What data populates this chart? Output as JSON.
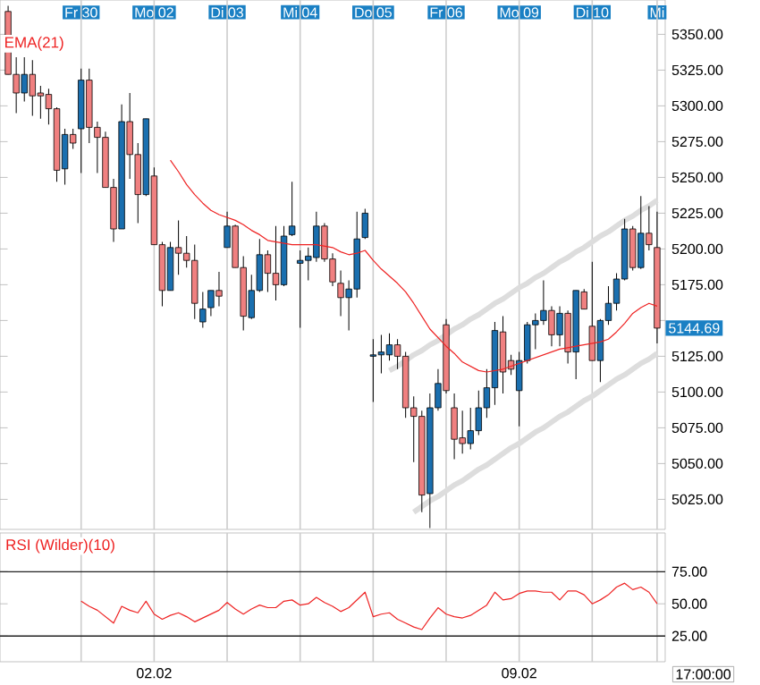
{
  "chart_data": [
    {
      "type": "candlestick",
      "ylim": [
        5004,
        5374
      ],
      "categories": [
        null,
        null,
        null,
        null,
        null,
        null,
        null,
        null,
        null,
        "Fr 30",
        null,
        null,
        null,
        null,
        null,
        null,
        null,
        null,
        "Mo 02",
        null,
        null,
        null,
        null,
        null,
        null,
        null,
        null,
        "Di 03",
        null,
        null,
        null,
        null,
        null,
        null,
        null,
        null,
        "Mi 04",
        null,
        null,
        null,
        null,
        null,
        null,
        null,
        null,
        "Do 05",
        null,
        null,
        null,
        null,
        null,
        null,
        null,
        null,
        "Fr 06",
        null,
        null,
        null,
        null,
        null,
        null,
        null,
        null,
        "Mo 09",
        null,
        null,
        null,
        null,
        null,
        null,
        null,
        null,
        "Di 10",
        null,
        null,
        null,
        null,
        null,
        null,
        null,
        "Mi"
      ],
      "yticks": [
        {
          "value": 5025,
          "label": "5025.00"
        },
        {
          "value": 5050,
          "label": "5050.00"
        },
        {
          "value": 5075,
          "label": "5075.00"
        },
        {
          "value": 5100,
          "label": "5100.00"
        },
        {
          "value": 5125,
          "label": "5125.00"
        },
        {
          "value": 5150,
          "label": null
        },
        {
          "value": 5175,
          "label": "5175.00"
        },
        {
          "value": 5200,
          "label": "5200.00"
        },
        {
          "value": 5225,
          "label": "5225.00"
        },
        {
          "value": 5250,
          "label": "5250.00"
        },
        {
          "value": 5275,
          "label": "5275.00"
        },
        {
          "value": 5300,
          "label": "5300.00"
        },
        {
          "value": 5325,
          "label": "5325.00"
        },
        {
          "value": 5350,
          "label": "5350.00"
        }
      ],
      "grid": "x",
      "annotations": [
        "5144.69"
      ],
      "series": [
        {
          "type": "candlestick",
          "ohlc": [
            [
              5366,
              5370,
              5322,
              5322
            ],
            [
              5322,
              5334,
              5295,
              5309
            ],
            [
              5309,
              5334,
              5303,
              5322
            ],
            [
              5322,
              5332,
              5293,
              5307
            ],
            [
              5309,
              5314,
              5291,
              5307
            ],
            [
              5308,
              5312,
              5287,
              5298
            ],
            [
              5298,
              5299,
              5247,
              5255
            ],
            [
              5256,
              5284,
              5245,
              5280
            ],
            [
              5280,
              5284,
              5270,
              5274
            ],
            [
              5284,
              5326,
              5253,
              5318
            ],
            [
              5318,
              5326,
              5274,
              5285
            ],
            [
              5285,
              5289,
              5253,
              5278
            ],
            [
              5278,
              5282,
              5243,
              5243
            ],
            [
              5243,
              5249,
              5205,
              5214
            ],
            [
              5214,
              5301,
              5214,
              5289
            ],
            [
              5289,
              5309,
              5249,
              5266
            ],
            [
              5266,
              5274,
              5218,
              5238
            ],
            [
              5238,
              5291,
              5237,
              5291
            ],
            [
              5251,
              5257,
              5203,
              5203
            ],
            [
              5203,
              5205,
              5160,
              5171
            ],
            [
              5171,
              5205,
              5171,
              5201
            ],
            [
              5201,
              5220,
              5182,
              5197
            ],
            [
              5197,
              5209,
              5187,
              5192
            ],
            [
              5192,
              5203,
              5151,
              5162
            ],
            [
              5149,
              5170,
              5145,
              5158
            ],
            [
              5159,
              5171,
              5153,
              5171
            ],
            [
              5171,
              5184,
              5160,
              5167
            ],
            [
              5201,
              5226,
              5201,
              5216
            ],
            [
              5216,
              5217,
              5187,
              5187
            ],
            [
              5187,
              5195,
              5143,
              5153
            ],
            [
              5152,
              5182,
              5151,
              5171
            ],
            [
              5171,
              5207,
              5170,
              5196
            ],
            [
              5196,
              5199,
              5170,
              5183
            ],
            [
              5183,
              5216,
              5164,
              5175
            ],
            [
              5175,
              5216,
              5174,
              5209
            ],
            [
              5210,
              5247,
              5209,
              5216
            ],
            [
              5190,
              5199,
              5145,
              5192
            ],
            [
              5192,
              5201,
              5178,
              5195
            ],
            [
              5194,
              5226,
              5191,
              5216
            ],
            [
              5216,
              5218,
              5191,
              5193
            ],
            [
              5193,
              5197,
              5174,
              5177
            ],
            [
              5176,
              5185,
              5153,
              5166
            ],
            [
              5166,
              5178,
              5143,
              5172
            ],
            [
              5172,
              5226,
              5166,
              5207
            ],
            [
              5208,
              5228,
              5207,
              5225
            ],
            [
              5125,
              5137,
              5093,
              5126
            ],
            [
              5126,
              5140,
              5113,
              5128
            ],
            [
              5126,
              5141,
              5122,
              5133
            ],
            [
              5133,
              5137,
              5116,
              5125
            ],
            [
              5125,
              5128,
              5082,
              5089
            ],
            [
              5089,
              5097,
              5051,
              5083
            ],
            [
              5083,
              5087,
              5016,
              5028
            ],
            [
              5029,
              5099,
              5005,
              5089
            ],
            [
              5089,
              5116,
              5087,
              5106
            ],
            [
              5147,
              5151,
              5099,
              5101
            ],
            [
              5089,
              5099,
              5053,
              5067
            ],
            [
              5068,
              5087,
              5057,
              5064
            ],
            [
              5064,
              5089,
              5060,
              5073
            ],
            [
              5073,
              5101,
              5070,
              5089
            ],
            [
              5089,
              5116,
              5082,
              5103
            ],
            [
              5103,
              5149,
              5091,
              5143
            ],
            [
              5142,
              5153,
              5099,
              5114
            ],
            [
              5122,
              5126,
              5112,
              5116
            ],
            [
              5101,
              5128,
              5076,
              5122
            ],
            [
              5122,
              5149,
              5120,
              5147
            ],
            [
              5147,
              5155,
              5130,
              5150
            ],
            [
              5150,
              5178,
              5147,
              5157
            ],
            [
              5157,
              5160,
              5132,
              5140
            ],
            [
              5140,
              5160,
              5132,
              5155
            ],
            [
              5155,
              5157,
              5120,
              5128
            ],
            [
              5128,
              5171,
              5109,
              5171
            ],
            [
              5170,
              5172,
              5158,
              5158
            ],
            [
              5146,
              5191,
              5122,
              5122
            ],
            [
              5122,
              5151,
              5107,
              5150
            ],
            [
              5150,
              5174,
              5147,
              5162
            ],
            [
              5162,
              5183,
              5157,
              5179
            ],
            [
              5179,
              5221,
              5178,
              5214
            ],
            [
              5214,
              5216,
              5185,
              5187
            ],
            [
              5187,
              5237,
              5186,
              5211
            ],
            [
              5211,
              5230,
              5199,
              5203
            ],
            [
              5201,
              5226,
              5134,
              5144.69
            ]
          ],
          "colors": [
            "#f08080",
            "#f08080",
            "#1a6faf",
            "#f08080",
            "#f08080",
            "#f08080",
            "#f08080",
            "#1a6faf",
            "#f08080",
            "#1a6faf",
            "#f08080",
            "#f08080",
            "#f08080",
            "#f08080",
            "#1a6faf",
            "#f08080",
            "#f08080",
            "#1a6faf",
            "#f08080",
            "#f08080",
            "#1a6faf",
            "#f08080",
            "#f08080",
            "#f08080",
            "#1a6faf",
            "#1a6faf",
            "#f08080",
            "#1a6faf",
            "#f08080",
            "#f08080",
            "#1a6faf",
            "#1a6faf",
            "#f08080",
            "#f08080",
            "#1a6faf",
            "#1a6faf",
            "#1a6faf",
            "#1a6faf",
            "#1a6faf",
            "#f08080",
            "#f08080",
            "#f08080",
            "#1a6faf",
            "#1a6faf",
            "#1a6faf",
            "#1a6faf",
            "#1a6faf",
            "#1a6faf",
            "#f08080",
            "#f08080",
            "#f08080",
            "#f08080",
            "#1a6faf",
            "#1a6faf",
            "#f08080",
            "#f08080",
            "#f08080",
            "#1a6faf",
            "#1a6faf",
            "#1a6faf",
            "#1a6faf",
            "#f08080",
            "#f08080",
            "#1a6faf",
            "#1a6faf",
            "#1a6faf",
            "#1a6faf",
            "#f08080",
            "#1a6faf",
            "#f08080",
            "#1a6faf",
            "#f08080",
            "#f08080",
            "#1a6faf",
            "#1a6faf",
            "#1a6faf",
            "#1a6faf",
            "#f08080",
            "#1a6faf",
            "#f08080",
            "#f08080"
          ]
        },
        {
          "type": "line",
          "name": "EMA(21)",
          "color": "#ee2222",
          "values": [
            null,
            null,
            null,
            null,
            null,
            null,
            null,
            null,
            null,
            null,
            null,
            null,
            null,
            null,
            null,
            null,
            null,
            null,
            null,
            null,
            5262,
            5254,
            5245,
            5238,
            5232,
            5227,
            5224,
            5222,
            5220,
            5217,
            5213,
            5210,
            5206,
            5205,
            5204,
            5203,
            5203,
            5203,
            5203,
            5202,
            5201,
            5198,
            5196,
            5197,
            5199,
            5192,
            5186,
            5181,
            5176,
            5170,
            5162,
            5153,
            5144,
            5138,
            5132,
            5127,
            5121,
            5118,
            5115,
            5114,
            5115,
            5116,
            5118,
            5120,
            5122,
            5124,
            5126,
            5128,
            5130,
            5131,
            5132,
            5133,
            5134,
            5135,
            5137,
            5142,
            5148,
            5155,
            5159,
            5162,
            5160
          ]
        },
        {
          "type": "line",
          "color": "#dddddd",
          "values": [
            null,
            null,
            null,
            null,
            null,
            null,
            null,
            null,
            null,
            null,
            null,
            null,
            null,
            null,
            null,
            null,
            null,
            null,
            null,
            null,
            null,
            null,
            null,
            null,
            null,
            null,
            null,
            null,
            null,
            null,
            null,
            null,
            null,
            null,
            null,
            null,
            null,
            null,
            null,
            null,
            null,
            null,
            null,
            null,
            null,
            null,
            null,
            5115,
            5118,
            5122,
            5126,
            5129,
            5133,
            5136,
            5140,
            5144,
            5147,
            5151,
            5154,
            5158,
            5162,
            5165,
            5169,
            5173,
            5176,
            5180,
            5183,
            5187,
            5191,
            5194,
            5198,
            5201,
            5205,
            5209,
            5212,
            5216,
            5220,
            5223,
            5227,
            5230,
            5234
          ]
        },
        {
          "type": "line",
          "color": "#dddddd",
          "values": [
            null,
            null,
            null,
            null,
            null,
            null,
            null,
            null,
            null,
            null,
            null,
            null,
            null,
            null,
            null,
            null,
            null,
            null,
            null,
            null,
            null,
            null,
            null,
            null,
            null,
            null,
            null,
            null,
            null,
            null,
            null,
            null,
            null,
            null,
            null,
            null,
            null,
            null,
            null,
            null,
            null,
            null,
            null,
            null,
            null,
            null,
            null,
            null,
            null,
            null,
            5016,
            5020,
            5024,
            5027,
            5031,
            5035,
            5038,
            5042,
            5046,
            5049,
            5053,
            5057,
            5061,
            5064,
            5068,
            5072,
            5075,
            5079,
            5083,
            5086,
            5090,
            5094,
            5097,
            5101,
            5105,
            5109,
            5112,
            5116,
            5120,
            5123,
            5127
          ]
        }
      ]
    },
    {
      "type": "line",
      "title": "RSI (Wilder)(10)",
      "ylim": [
        5,
        105
      ],
      "categories": [
        null,
        null,
        null,
        null,
        null,
        null,
        null,
        null,
        null,
        null,
        null,
        null,
        null,
        null,
        null,
        null,
        null,
        null,
        "02.02",
        null,
        null,
        null,
        null,
        null,
        null,
        null,
        null,
        null,
        null,
        null,
        null,
        null,
        null,
        null,
        null,
        null,
        null,
        null,
        null,
        null,
        null,
        null,
        null,
        null,
        null,
        null,
        null,
        null,
        null,
        null,
        null,
        null,
        null,
        null,
        null,
        null,
        null,
        null,
        null,
        null,
        null,
        null,
        null,
        "09.02",
        null,
        null,
        null,
        null,
        null,
        null,
        null,
        null,
        null,
        null,
        null,
        null,
        null,
        null,
        null,
        null,
        null
      ],
      "yticks": [
        {
          "value": 25,
          "label": "25.00"
        },
        {
          "value": 50,
          "label": "50.00"
        },
        {
          "value": 75,
          "label": "75.00"
        }
      ],
      "grid": "x",
      "ref_lines": [
        {
          "axis": "y",
          "value": 75,
          "color": "#222222"
        },
        {
          "axis": "y",
          "value": 25,
          "color": "#222222"
        }
      ],
      "annotations": [
        "17:00:00"
      ],
      "series": [
        {
          "color": "#ee2222",
          "values": [
            null,
            null,
            null,
            null,
            null,
            null,
            null,
            null,
            null,
            52,
            48,
            45,
            40,
            35,
            48,
            45,
            43,
            52,
            42,
            38,
            41,
            43,
            40,
            36,
            39,
            42,
            45,
            51,
            46,
            42,
            46,
            49,
            47,
            47,
            52,
            53,
            49,
            50,
            55,
            51,
            48,
            44,
            47,
            53,
            59,
            40,
            42,
            43,
            38,
            35,
            32,
            30,
            39,
            47,
            42,
            40,
            39,
            41,
            45,
            49,
            59,
            53,
            54,
            58,
            60,
            60,
            59,
            59,
            53,
            60,
            60,
            57,
            50,
            53,
            57,
            63,
            66,
            61,
            63,
            59,
            50
          ]
        }
      ]
    }
  ]
}
